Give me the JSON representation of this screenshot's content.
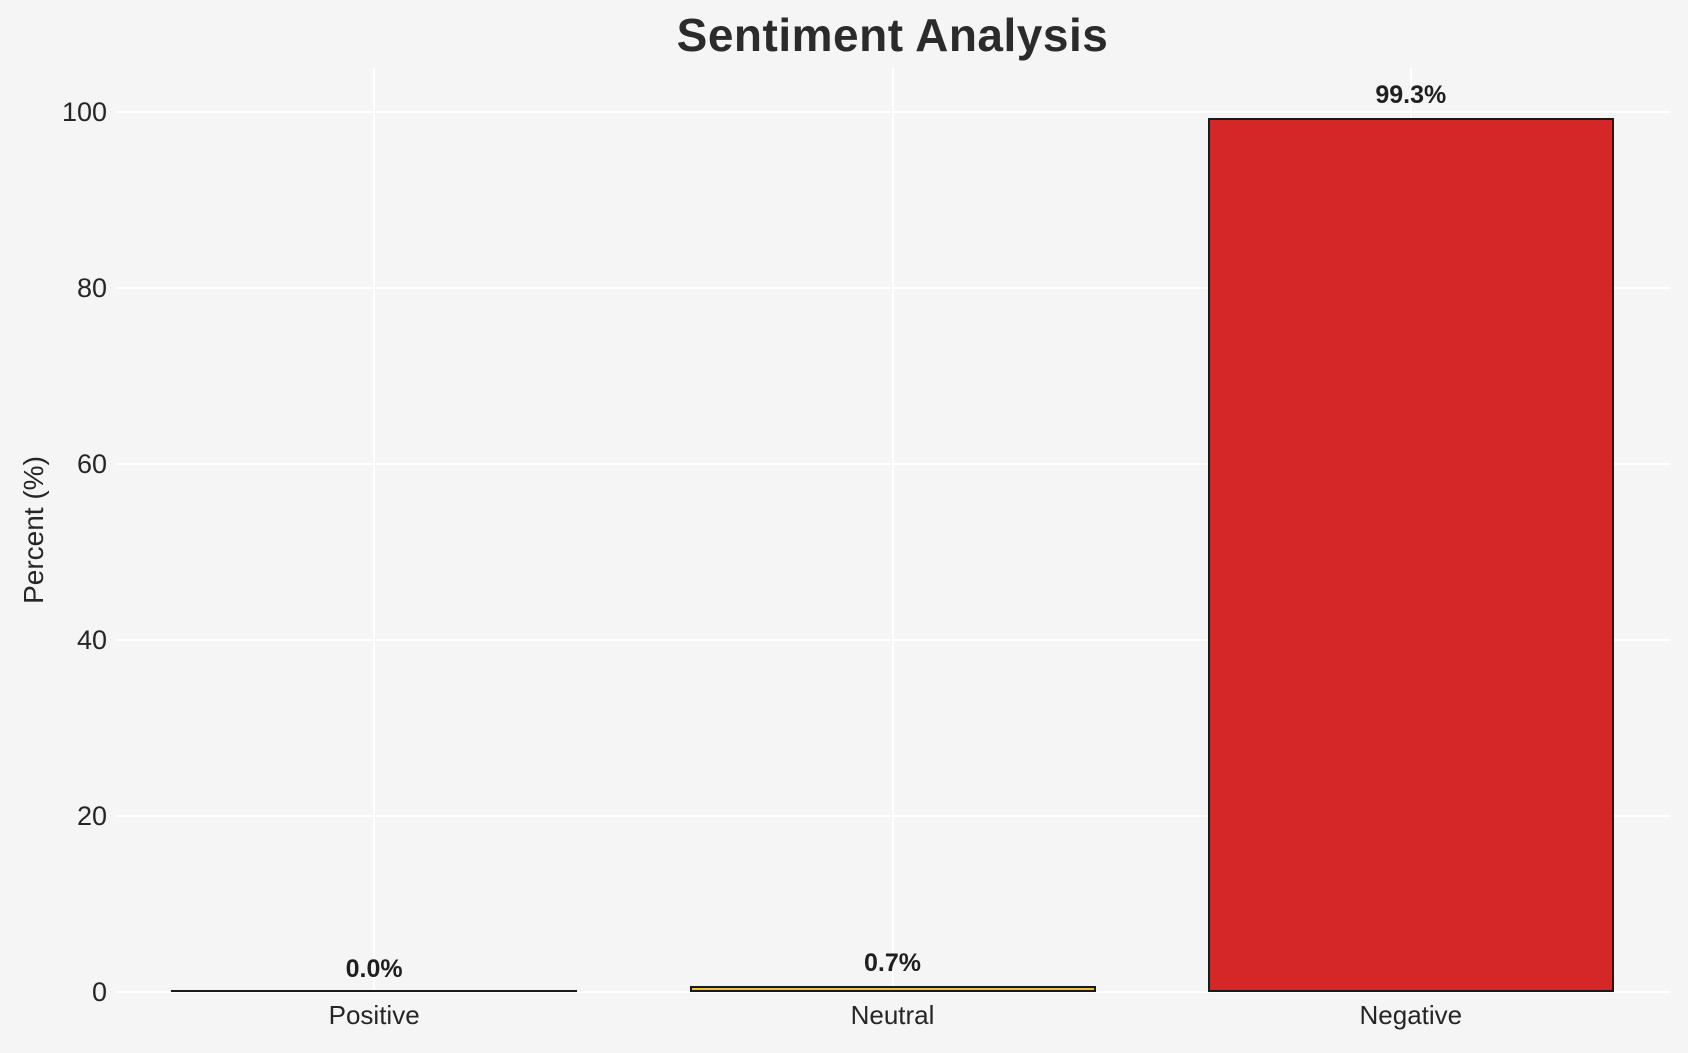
{
  "chart_title": "Sentiment Analysis",
  "chart_data": {
    "type": "bar",
    "title": "Sentiment Analysis",
    "categories": [
      "Positive",
      "Neutral",
      "Negative"
    ],
    "values": [
      0.0,
      0.7,
      99.3
    ],
    "bar_labels": [
      "0.0%",
      "0.7%",
      "99.3%"
    ],
    "xlabel": "",
    "ylabel": "Percent (%)",
    "ylim": [
      0,
      105
    ],
    "yticks": [
      0,
      20,
      40,
      60,
      80,
      100
    ],
    "legend": "none",
    "grid": "horizontal and vertical white gridlines, no axis spines",
    "bar_colors": [
      "#f5f5f6",
      "#f1c232",
      "#d62728"
    ],
    "bar_edge_color": "#1a1a1a",
    "colors": {
      "background": "#f5f5f6",
      "gridline": "#ffffff",
      "title_text": "#2b2b2b",
      "tick_text": "#262626",
      "value_label_text": "#1f1f1f"
    }
  }
}
